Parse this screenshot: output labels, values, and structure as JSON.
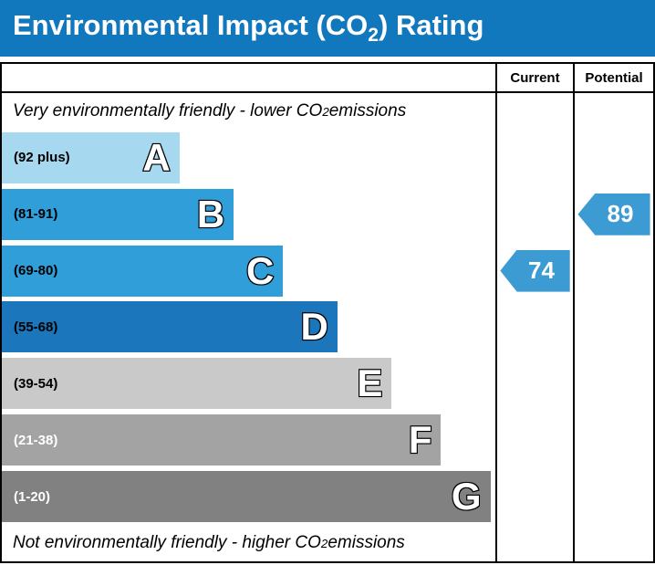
{
  "title": {
    "prefix": "Environmental Impact (CO",
    "sub": "2",
    "suffix": ") Rating"
  },
  "header": {
    "current": "Current",
    "potential": "Potential"
  },
  "notes": {
    "top": {
      "text": "Very environmentally friendly - lower CO",
      "sub": "2",
      "suffix": " emissions"
    },
    "bottom": {
      "text": "Not environmentally friendly - higher CO",
      "sub": "2",
      "suffix": " emissions"
    }
  },
  "chart_data": {
    "type": "bar",
    "title": "Environmental Impact (CO2) Rating",
    "title_bar_color": "#1278be",
    "arrow_color": "#3d9bd4",
    "bands": [
      {
        "letter": "A",
        "range": "(92 plus)",
        "color": "#a6d8f0",
        "label_color": "#000000",
        "width_pct": 36
      },
      {
        "letter": "B",
        "range": "(81-91)",
        "color": "#2f9ed9",
        "label_color": "#000000",
        "width_pct": 47
      },
      {
        "letter": "C",
        "range": "(69-80)",
        "color": "#2f9ed9",
        "label_color": "#000000",
        "width_pct": 57
      },
      {
        "letter": "D",
        "range": "(55-68)",
        "color": "#1b76bc",
        "label_color": "#000000",
        "width_pct": 68
      },
      {
        "letter": "E",
        "range": "(39-54)",
        "color": "#c9c9c9",
        "label_color": "#000000",
        "width_pct": 79
      },
      {
        "letter": "F",
        "range": "(21-38)",
        "color": "#a3a3a3",
        "label_color": "#ffffff",
        "width_pct": 89
      },
      {
        "letter": "G",
        "range": "(1-20)",
        "color": "#818181",
        "label_color": "#ffffff",
        "width_pct": 99
      }
    ],
    "current": {
      "value": 74,
      "band": "C"
    },
    "potential": {
      "value": 89,
      "band": "B"
    }
  }
}
